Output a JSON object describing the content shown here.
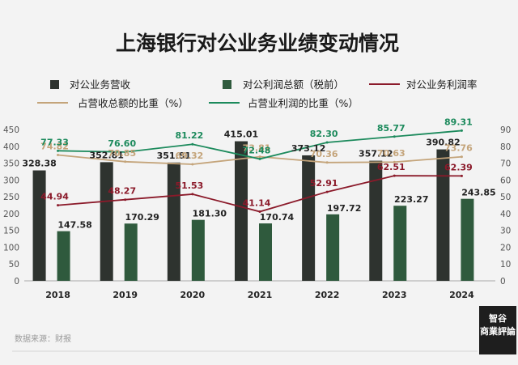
{
  "chart_data": {
    "type": "bar",
    "title": "上海银行对公业务业绩变动情况",
    "categories": [
      "2018",
      "2019",
      "2020",
      "2021",
      "2022",
      "2023",
      "2024"
    ],
    "y_left": {
      "min": 0,
      "max": 450,
      "step": 50
    },
    "y_right": {
      "min": 0,
      "max": 90,
      "step": 10
    },
    "source": "数据来源：财报",
    "colors": {
      "bar_revenue": "#2e332f",
      "bar_profit": "#2f5a3d",
      "line_margin": "#8b1a2a",
      "line_rev_share": "#c4a47a",
      "line_profit_share": "#1c8a5c"
    },
    "series": [
      {
        "name": "对公业务营收",
        "kind": "bar",
        "axis": "left",
        "values": [
          328.38,
          352.81,
          351.81,
          415.01,
          373.12,
          357.12,
          390.82
        ],
        "labels": [
          "328.38",
          "352.81",
          "351.81",
          "415.01",
          "373.12",
          "357.12",
          "390.82"
        ]
      },
      {
        "name": "对公利润总额（税前）",
        "kind": "bar",
        "axis": "left",
        "values": [
          147.58,
          170.29,
          181.3,
          170.74,
          197.72,
          223.27,
          243.85
        ],
        "labels": [
          "147.58",
          "170.29",
          "181.30",
          "170.74",
          "197.72",
          "223.27",
          "243.85"
        ]
      },
      {
        "name": "对公业务利润率",
        "kind": "line",
        "axis": "right",
        "values": [
          44.94,
          48.27,
          51.53,
          41.14,
          52.91,
          62.51,
          62.39
        ],
        "labels": [
          "44.94",
          "48.27",
          "51.53",
          "41.14",
          "52.91",
          "62.51",
          "62.39"
        ]
      },
      {
        "name": "占营收总额的比重（%）",
        "kind": "line",
        "axis": "right",
        "values": [
          74.82,
          70.85,
          69.32,
          73.81,
          70.36,
          70.63,
          73.76
        ],
        "labels": [
          "74.82",
          "70.85",
          "69.32",
          "73.81",
          "70.36",
          "70.63",
          "73.76"
        ]
      },
      {
        "name": "占营业利润的比重（%）",
        "kind": "line",
        "axis": "right",
        "values": [
          77.33,
          76.6,
          81.22,
          72.48,
          82.3,
          85.77,
          89.31
        ],
        "labels": [
          "77.33",
          "76.60",
          "81.22",
          "72.48",
          "82.30",
          "85.77",
          "89.31"
        ]
      }
    ]
  },
  "watermark": {
    "line1": "智谷",
    "line2": "商業評論"
  }
}
